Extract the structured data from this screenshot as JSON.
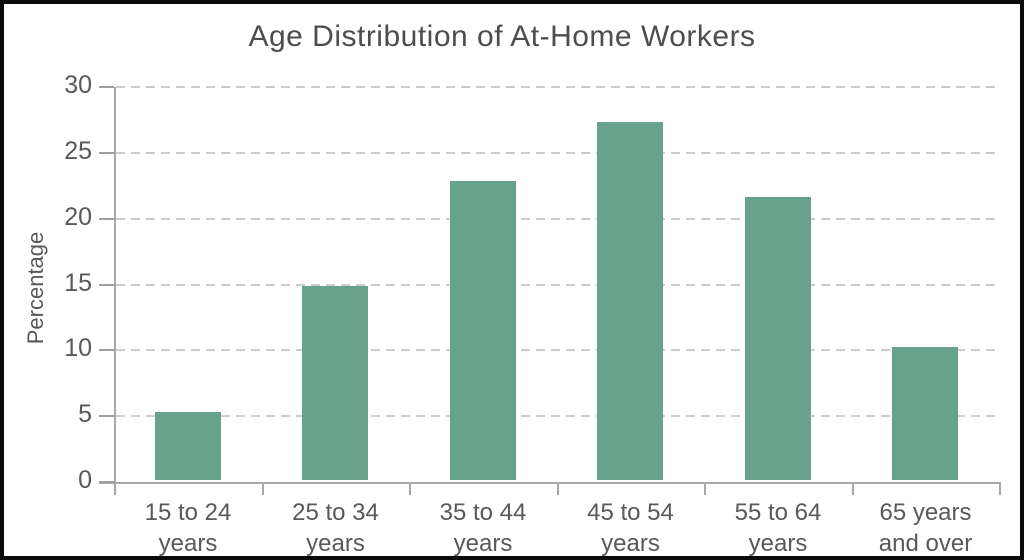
{
  "chart_data": {
    "type": "bar",
    "title": "Age Distribution of At-Home Workers",
    "xlabel": "",
    "ylabel": "Percentage",
    "categories": [
      "15 to 24 years",
      "25 to 34 years",
      "35 to 44 years",
      "45 to 54 years",
      "55 to 64 years",
      "65 years and over"
    ],
    "category_label_lines": [
      [
        "15 to 24",
        "years"
      ],
      [
        "25 to 34",
        "years"
      ],
      [
        "35 to 44",
        "years"
      ],
      [
        "45 to 54",
        "years"
      ],
      [
        "55 to 64",
        "years"
      ],
      [
        "65 years",
        "and over"
      ]
    ],
    "values": [
      5.2,
      14.7,
      22.7,
      27.2,
      21.5,
      10.1
    ],
    "ylim": [
      0,
      30
    ],
    "yticks": [
      0,
      5,
      10,
      15,
      20,
      25,
      30
    ],
    "grid": "horizontal-dashed",
    "legend": "none",
    "colors": {
      "bar_fill": "#69a28c",
      "axis_line": "#a8a8a8",
      "gridline": "#cdcdcd",
      "tick_text": "#595959",
      "title_text": "#4d4d4d",
      "figure_border": "#0a0a0a",
      "background": "#ffffff"
    }
  }
}
